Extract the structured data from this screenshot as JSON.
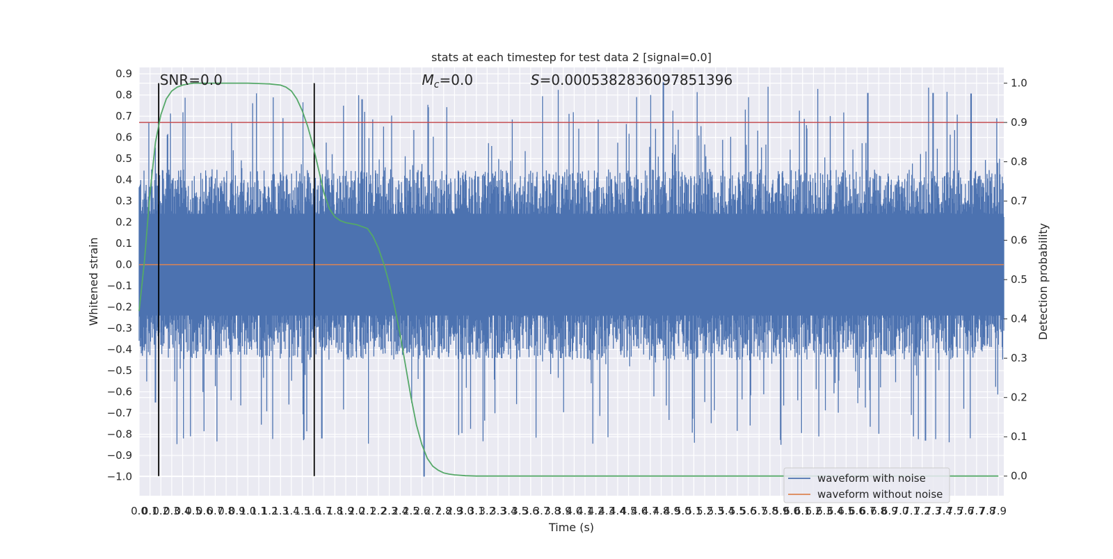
{
  "chart_data": {
    "type": "line",
    "title": "stats at each timestep for test data 2 [signal=0.0]",
    "xlabel": "Time (s)",
    "ylabel": "Whitened strain",
    "ylabel_right": "Detection probability",
    "xlim": [
      0.0,
      7.95
    ],
    "ylim": [
      -1.09,
      0.93
    ],
    "ylim_right": [
      -0.05,
      1.04
    ],
    "grid": true,
    "x_ticks": [
      0.0,
      0.1,
      0.2,
      0.3,
      0.4,
      0.5,
      0.6,
      0.7,
      0.8,
      0.9,
      1.0,
      1.1,
      1.2,
      1.3,
      1.4,
      1.5,
      1.6,
      1.7,
      1.8,
      1.9,
      2.0,
      2.1,
      2.2,
      2.3,
      2.4,
      2.5,
      2.6,
      2.7,
      2.8,
      2.9,
      3.0,
      3.1,
      3.2,
      3.3,
      3.4,
      3.5,
      3.6,
      3.7,
      3.8,
      3.9,
      4.0,
      4.1,
      4.2,
      4.3,
      4.4,
      4.5,
      4.6,
      4.7,
      4.8,
      4.9,
      5.0,
      5.1,
      5.2,
      5.3,
      5.4,
      5.5,
      5.6,
      5.7,
      5.8,
      5.9,
      6.0,
      6.1,
      6.2,
      6.3,
      6.4,
      6.5,
      6.6,
      6.7,
      6.8,
      6.9,
      7.0,
      7.1,
      7.2,
      7.3,
      7.4,
      7.5,
      7.6,
      7.7,
      7.8,
      7.9
    ],
    "y_ticks": [
      0.9,
      0.8,
      0.7,
      0.6,
      0.5,
      0.4,
      0.3,
      0.2,
      0.1,
      0.0,
      -0.1,
      -0.2,
      -0.3,
      -0.4,
      -0.5,
      -0.6,
      -0.7,
      -0.8,
      -0.9,
      -1.0
    ],
    "y_ticks_right": [
      1.0,
      0.9,
      0.8,
      0.7,
      0.6,
      0.5,
      0.4,
      0.3,
      0.2,
      0.1,
      0.0
    ],
    "x_tick_labels": [
      "0.0",
      "0.1",
      "0.2",
      "0.3",
      "0.4",
      "0.5",
      "0.6",
      "0.7",
      "0.8",
      "0.9",
      "1.0",
      "1.1",
      "1.2",
      "1.3",
      "1.4",
      "1.5",
      "1.6",
      "1.7",
      "1.8",
      "1.9",
      "2.0",
      "2.1",
      "2.2",
      "2.3",
      "2.4",
      "2.5",
      "2.6",
      "2.7",
      "2.8",
      "2.9",
      "3.0",
      "3.1",
      "3.2",
      "3.3",
      "3.4",
      "3.5",
      "3.6",
      "3.7",
      "3.8",
      "3.9",
      "4.0",
      "4.1",
      "4.2",
      "4.3",
      "4.4",
      "4.5",
      "4.6",
      "4.7",
      "4.8",
      "4.9",
      "5.0",
      "5.1",
      "5.2",
      "5.3",
      "5.4",
      "5.5",
      "5.6",
      "5.7",
      "5.8",
      "5.9",
      "6.0",
      "6.1",
      "6.2",
      "6.3",
      "6.4",
      "6.5",
      "6.6",
      "6.7",
      "6.8",
      "6.9",
      "7.0",
      "7.1",
      "7.2",
      "7.3",
      "7.4",
      "7.5",
      "7.6",
      "7.7",
      "7.8",
      "7.9"
    ],
    "y_tick_labels": [
      "0.9",
      "0.8",
      "0.7",
      "0.6",
      "0.5",
      "0.4",
      "0.3",
      "0.2",
      "0.1",
      "0.0",
      "−0.1",
      "−0.2",
      "−0.3",
      "−0.4",
      "−0.5",
      "−0.6",
      "−0.7",
      "−0.8",
      "−0.9",
      "−1.0"
    ],
    "y_tick_labels_right": [
      "1.0",
      "0.9",
      "0.8",
      "0.7",
      "0.6",
      "0.5",
      "0.4",
      "0.3",
      "0.2",
      "0.1",
      "0.0"
    ],
    "series": [
      {
        "name": "waveform with noise",
        "color": "#4c72b0",
        "envelope_typical": 0.45,
        "envelope_peak": 1.0
      },
      {
        "name": "waveform without noise",
        "color": "#dd8452",
        "value": 0.0
      },
      {
        "color": "#55a868",
        "axis": "right",
        "x": [
          0.0,
          0.05,
          0.1,
          0.15,
          0.2,
          0.25,
          0.3,
          0.35,
          0.4,
          0.45,
          0.5,
          0.6,
          0.8,
          1.0,
          1.2,
          1.3,
          1.35,
          1.4,
          1.45,
          1.5,
          1.55,
          1.6,
          1.65,
          1.7,
          1.75,
          1.8,
          1.85,
          1.9,
          2.0,
          2.1,
          2.15,
          2.2,
          2.25,
          2.3,
          2.35,
          2.4,
          2.45,
          2.5,
          2.55,
          2.6,
          2.65,
          2.7,
          2.75,
          2.8,
          2.85,
          2.9,
          3.0,
          3.1,
          3.3,
          3.6,
          4.0,
          5.0,
          6.0,
          7.0,
          7.9
        ],
        "y": [
          0.42,
          0.55,
          0.72,
          0.85,
          0.92,
          0.96,
          0.98,
          0.99,
          0.995,
          0.998,
          1.0,
          1.0,
          1.0,
          1.0,
          0.998,
          0.995,
          0.99,
          0.98,
          0.96,
          0.93,
          0.89,
          0.84,
          0.78,
          0.72,
          0.68,
          0.66,
          0.65,
          0.645,
          0.64,
          0.63,
          0.61,
          0.58,
          0.54,
          0.49,
          0.43,
          0.36,
          0.28,
          0.2,
          0.13,
          0.08,
          0.045,
          0.025,
          0.015,
          0.008,
          0.005,
          0.003,
          0.001,
          0.0,
          0.0,
          0.0,
          0.0,
          0.0,
          0.0,
          0.0,
          0.0
        ]
      }
    ],
    "threshold": {
      "value": 0.9,
      "axis": "right",
      "color": "#c44e52"
    },
    "vertical_lines": [
      0.18,
      1.61
    ],
    "annotations": [
      {
        "text": "SNR=0.0",
        "x": 0.19
      },
      {
        "text": "=0.0",
        "prefix": "M",
        "subscript": "c",
        "x": 2.6
      },
      {
        "text": "=0.0005382836097851396",
        "prefix": "S",
        "x": 3.6
      }
    ],
    "legend": {
      "placement": "lower-right",
      "entries": [
        "waveform with noise",
        "waveform without noise"
      ]
    }
  }
}
